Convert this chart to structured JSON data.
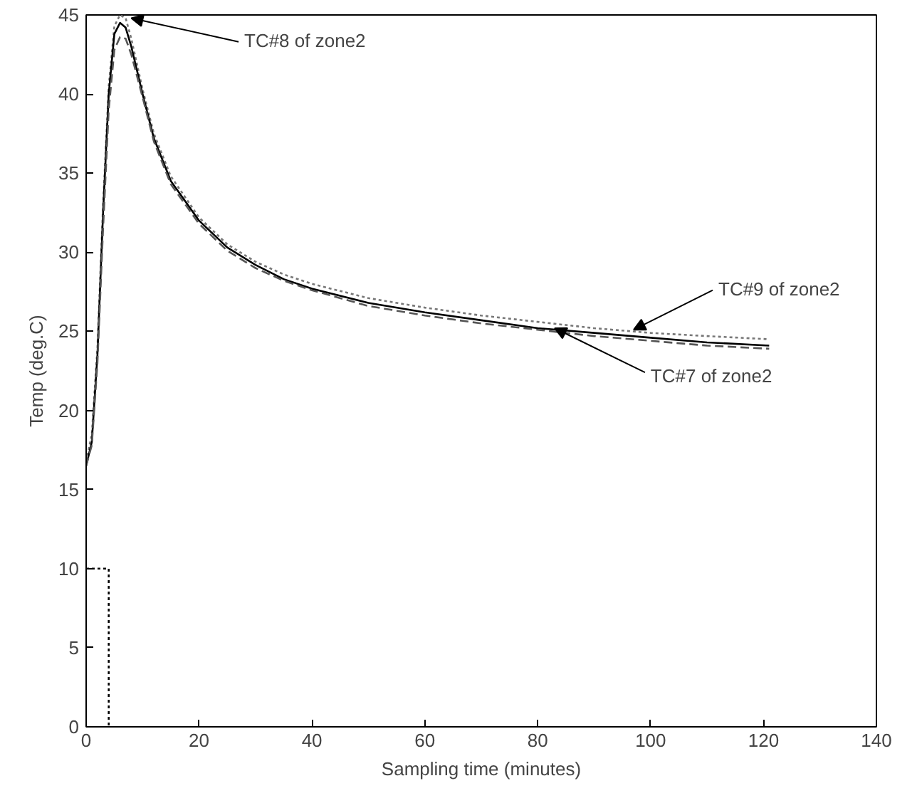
{
  "chart_data": {
    "type": "line",
    "xlabel": "Sampling time (minutes)",
    "ylabel": "Temp (deg.C)",
    "xlim": [
      0,
      140
    ],
    "ylim": [
      0,
      45
    ],
    "xticks": [
      0,
      20,
      40,
      60,
      80,
      100,
      120,
      140
    ],
    "yticks": [
      0,
      5,
      10,
      15,
      20,
      25,
      30,
      35,
      40,
      45
    ],
    "grid": false,
    "marker": "none",
    "series": [
      {
        "color": "#777777",
        "line_style": "dotted",
        "x": [
          0,
          1,
          2,
          3,
          4,
          5,
          6,
          7,
          8,
          10,
          12,
          15,
          20,
          25,
          30,
          35,
          40,
          50,
          60,
          70,
          80,
          90,
          100,
          110,
          121
        ],
        "values": [
          16.8,
          18.5,
          24,
          33,
          40.5,
          44.3,
          45,
          44.8,
          43.5,
          40.3,
          37.5,
          34.8,
          32.2,
          30.5,
          29.4,
          28.6,
          28,
          27.1,
          26.5,
          26,
          25.6,
          25.2,
          24.9,
          24.7,
          24.5
        ]
      },
      {
        "color": "#000000",
        "line_style": "solid",
        "x": [
          0,
          1,
          2,
          3,
          4,
          5,
          6,
          7,
          8,
          10,
          12,
          15,
          20,
          25,
          30,
          35,
          40,
          50,
          60,
          70,
          80,
          90,
          100,
          110,
          121
        ],
        "values": [
          16.5,
          18,
          23.5,
          32.5,
          40,
          43.8,
          44.5,
          44.2,
          43,
          40,
          37.2,
          34.5,
          32,
          30.3,
          29.2,
          28.3,
          27.7,
          26.8,
          26.2,
          25.7,
          25.2,
          24.9,
          24.6,
          24.3,
          24.1
        ]
      },
      {
        "color": "#555555",
        "line_style": "dashed",
        "x": [
          0,
          1,
          2,
          3,
          4,
          5,
          6,
          7,
          8,
          10,
          12,
          15,
          20,
          25,
          30,
          35,
          40,
          50,
          60,
          70,
          80,
          90,
          100,
          110,
          121
        ],
        "values": [
          16.5,
          17.8,
          23,
          31.5,
          39,
          42.8,
          43.6,
          43.5,
          42.5,
          39.8,
          37,
          34.3,
          31.8,
          30.1,
          29,
          28.2,
          27.6,
          26.6,
          26,
          25.5,
          25.1,
          24.7,
          24.4,
          24.1,
          23.9
        ]
      },
      {
        "color": "#000000",
        "line_style": "dotted",
        "x": [
          0,
          4,
          4
        ],
        "values": [
          10,
          10,
          0
        ]
      }
    ],
    "annotations": [
      {
        "text": "TC#8 of zone2",
        "x": 8,
        "y": 44.8
      },
      {
        "text": "TC#9 of zone2",
        "x": 97,
        "y": 25.1
      },
      {
        "text": "TC#7 of zone2",
        "x": 83,
        "y": 25.2
      }
    ]
  }
}
